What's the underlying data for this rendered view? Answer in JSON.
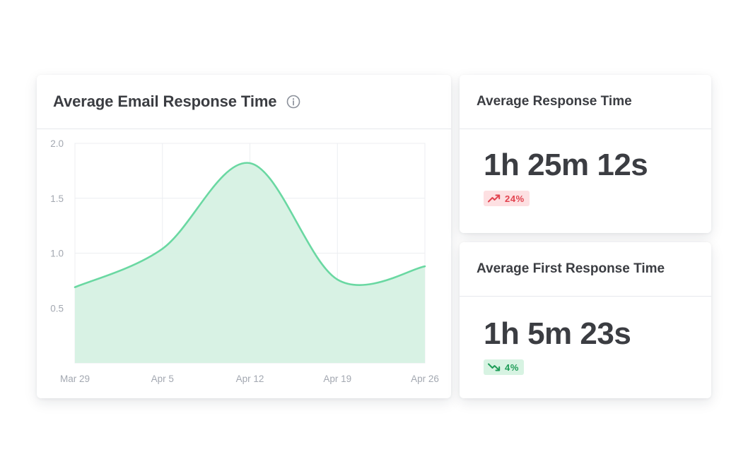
{
  "chart_card": {
    "title": "Average Email Response Time",
    "info_icon": "info-circle-icon"
  },
  "chart_data": {
    "type": "area",
    "title": "Average Email Response Time",
    "xlabel": "",
    "ylabel": "",
    "categories": [
      "Mar 29",
      "Apr 5",
      "Apr 12",
      "Apr 19",
      "Apr 26"
    ],
    "values": [
      0.69,
      1.04,
      1.82,
      0.76,
      0.88
    ],
    "y_ticks": [
      "2.0",
      "1.5",
      "1.0",
      "0.5"
    ],
    "ylim": [
      0,
      2.0
    ],
    "grid": true,
    "line_color": "#6ad8a2",
    "fill_color": "#d6f1e3"
  },
  "metrics": [
    {
      "title": "Average Response Time",
      "value": "1h 25m 12s",
      "change": "24%",
      "direction": "up",
      "icon": "trending-up-icon",
      "color": "#e2434f"
    },
    {
      "title": "Average First Response Time",
      "value": "1h 5m 23s",
      "change": "4%",
      "direction": "down",
      "icon": "trending-down-icon",
      "color": "#1f9d58"
    }
  ]
}
